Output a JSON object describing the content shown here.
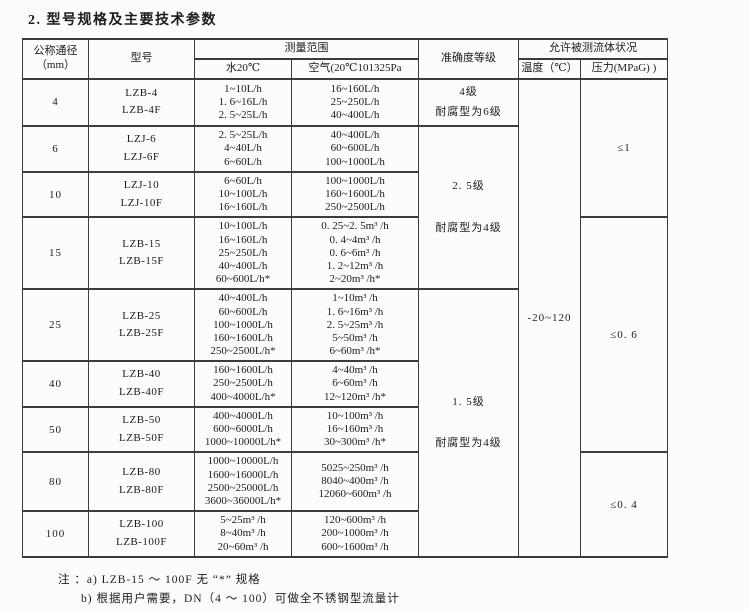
{
  "title": "2. 型号规格及主要技术参数",
  "header": {
    "dn": "公称通径\n（mm）",
    "model": "型号",
    "range": "测量范围",
    "water": "水20℃",
    "air": "空气(20℃101325Pa",
    "accuracy": "准确度等级",
    "fluid": "允许被测流体状况",
    "temperature": "温度（℃）",
    "pressure": "压力(MPaG) )"
  },
  "rows": [
    {
      "dn": "4",
      "models": [
        "LZB-4",
        "LZB-4F"
      ],
      "water": [
        "1~10L/h",
        "1. 6~16L/h",
        "2. 5~25L/h"
      ],
      "air": [
        "16~160L/h",
        "25~250L/h",
        "40~400L/h"
      ]
    },
    {
      "dn": "6",
      "models": [
        "LZJ-6",
        "LZJ-6F"
      ],
      "water": [
        "2. 5~25L/h",
        "4~40L/h",
        "6~60L/h"
      ],
      "air": [
        "40~400L/h",
        "60~600L/h",
        "100~1000L/h"
      ]
    },
    {
      "dn": "10",
      "models": [
        "LZJ-10",
        "LZJ-10F"
      ],
      "water": [
        "6~60L/h",
        "10~100L/h",
        "16~160L/h"
      ],
      "air": [
        "100~1000L/h",
        "160~1600L/h",
        "250~2500L/h"
      ]
    },
    {
      "dn": "15",
      "models": [
        "LZB-15",
        "LZB-15F"
      ],
      "water": [
        "10~100L/h",
        "16~160L/h",
        "25~250L/h",
        "40~400L/h",
        "60~600L/h*"
      ],
      "air": [
        "0. 25~2. 5m³ /h",
        "0. 4~4m³ /h",
        "0. 6~6m³ /h",
        "1. 2~12m³ /h",
        "2~20m³ /h*"
      ]
    },
    {
      "dn": "25",
      "models": [
        "LZB-25",
        "LZB-25F"
      ],
      "water": [
        "40~400L/h",
        "60~600L/h",
        "100~1000L/h",
        "160~1600L/h",
        "250~2500L/h*"
      ],
      "air": [
        "1~10m³ /h",
        "1. 6~16m³ /h",
        "2. 5~25m³ /h",
        "5~50m³ /h",
        "6~60m³ /h*"
      ]
    },
    {
      "dn": "40",
      "models": [
        "LZB-40",
        "LZB-40F"
      ],
      "water": [
        "160~1600L/h",
        "250~2500L/h",
        "400~4000L/h*"
      ],
      "air": [
        "4~40m³ /h",
        "6~60m³ /h",
        "12~120m³ /h*"
      ]
    },
    {
      "dn": "50",
      "models": [
        "LZB-50",
        "LZB-50F"
      ],
      "water": [
        "400~4000L/h",
        "600~6000L/h",
        "1000~10000L/h*"
      ],
      "air": [
        "10~100m³ /h",
        "16~160m³ /h",
        "30~300m³ /h*"
      ]
    },
    {
      "dn": "80",
      "models": [
        "LZB-80",
        "LZB-80F"
      ],
      "water": [
        "1000~10000L/h",
        "1600~16000L/h",
        "2500~25000L/h",
        "3600~36000L/h*"
      ],
      "air": [
        "5025~250m³ /h",
        "8040~400m³ /h",
        "12060~600m³ /h"
      ]
    },
    {
      "dn": "100",
      "models": [
        "LZB-100",
        "LZB-100F"
      ],
      "water": [
        "5~25m³ /h",
        "8~40m³ /h",
        "20~60m³ /h"
      ],
      "air": [
        "120~600m³ /h",
        "200~1000m³ /h",
        "600~1600m³ /h"
      ]
    }
  ],
  "accuracy_groups": [
    {
      "start": 0,
      "span": 1,
      "lines": [
        "4级",
        "耐腐型为6级"
      ]
    },
    {
      "start": 1,
      "span": 3,
      "lines": [
        "2. 5级",
        "耐腐型为4级"
      ]
    },
    {
      "start": 4,
      "span": 5,
      "lines": [
        "1. 5级",
        "耐腐型为4级"
      ]
    }
  ],
  "temperature_value": "-20~120",
  "pressure_groups": [
    {
      "start": 0,
      "span": 3,
      "value": "≤1"
    },
    {
      "start": 3,
      "span": 4,
      "value": "≤0. 6"
    },
    {
      "start": 7,
      "span": 2,
      "value": "≤0. 4"
    }
  ],
  "notes": {
    "a": "注 ：a) LZB-15 ～ 100F 无 “*” 规格",
    "b": "b) 根据用户需要，DN（4 ～ 100）可做全不锈钢型流量计"
  }
}
